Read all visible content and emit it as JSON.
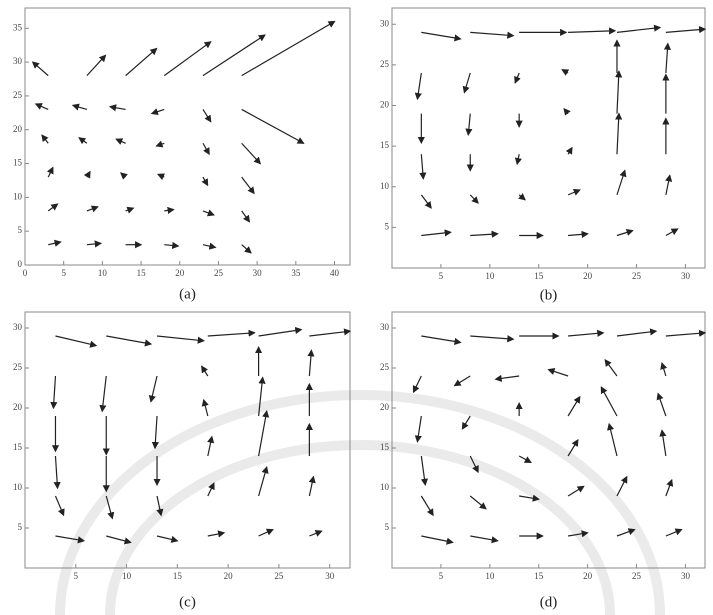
{
  "chart_data": [
    {
      "type": "quiver",
      "caption": "(a)",
      "color": "#222222",
      "xlim": [
        0,
        42
      ],
      "ylim": [
        0,
        38
      ],
      "xticks": [
        0,
        5,
        10,
        15,
        20,
        25,
        30,
        35,
        40
      ],
      "yticks": [
        0,
        5,
        10,
        15,
        20,
        25,
        30,
        35
      ],
      "x": [
        3,
        8,
        13,
        18,
        23,
        28
      ],
      "y": [
        3,
        8,
        13,
        18,
        23,
        28
      ],
      "u": [
        [
          0.8,
          0.9,
          1.0,
          0.9,
          0.8,
          0.6
        ],
        [
          0.6,
          0.7,
          0.5,
          0.6,
          0.7,
          0.5
        ],
        [
          0.3,
          0.2,
          -0.3,
          -0.4,
          0.3,
          0.8
        ],
        [
          -0.4,
          -0.5,
          -0.6,
          -0.5,
          0.4,
          1.2
        ],
        [
          -0.8,
          -0.9,
          -1.0,
          -0.8,
          0.5,
          4.0
        ],
        [
          -1.0,
          1.2,
          2.0,
          3.0,
          4.0,
          6.0
        ]
      ],
      "v": [
        [
          0.2,
          0.1,
          0.0,
          -0.1,
          -0.2,
          -0.6
        ],
        [
          0.5,
          0.3,
          0.2,
          0.1,
          -0.3,
          -0.8
        ],
        [
          0.7,
          0.4,
          0.3,
          0.2,
          -0.6,
          -1.2
        ],
        [
          0.6,
          0.4,
          0.3,
          -0.2,
          -0.8,
          -1.5
        ],
        [
          0.4,
          0.3,
          0.2,
          -0.3,
          -0.9,
          -2.5
        ],
        [
          1.0,
          1.5,
          2.0,
          2.5,
          3.0,
          4.0
        ]
      ]
    },
    {
      "type": "quiver",
      "caption": "(b)",
      "color": "#222222",
      "xlim": [
        0,
        32
      ],
      "ylim": [
        0,
        32
      ],
      "xticks": [
        5,
        10,
        15,
        20,
        25,
        30
      ],
      "yticks": [
        5,
        10,
        15,
        20,
        25,
        30
      ],
      "x": [
        3,
        8,
        13,
        18,
        23,
        28
      ],
      "y": [
        4,
        9,
        14,
        19,
        24,
        29
      ],
      "u": [
        [
          1.5,
          1.4,
          1.2,
          1.0,
          0.8,
          0.6
        ],
        [
          0.5,
          0.4,
          0.3,
          0.6,
          0.4,
          0.2
        ],
        [
          0.1,
          0.0,
          -0.1,
          0.2,
          0.1,
          0.0
        ],
        [
          0.0,
          -0.1,
          0.0,
          -0.2,
          0.1,
          0.0
        ],
        [
          -0.2,
          -0.3,
          -0.2,
          -0.3,
          0.0,
          0.1
        ],
        [
          2.0,
          2.2,
          2.4,
          2.4,
          2.2,
          2.0
        ]
      ],
      "v": [
        [
          0.2,
          0.1,
          0.0,
          0.1,
          0.3,
          0.4
        ],
        [
          -0.8,
          -0.5,
          -0.3,
          0.3,
          1.5,
          1.2
        ],
        [
          -1.5,
          -1.0,
          -0.6,
          0.4,
          2.5,
          2.2
        ],
        [
          -1.8,
          -1.3,
          -0.8,
          0.3,
          2.6,
          2.4
        ],
        [
          -1.6,
          -1.2,
          -0.6,
          0.2,
          2.0,
          1.8
        ],
        [
          -0.4,
          -0.2,
          0.0,
          0.1,
          0.3,
          0.2
        ]
      ]
    },
    {
      "type": "quiver",
      "caption": "(c)",
      "color": "#222222",
      "xlim": [
        0,
        32
      ],
      "ylim": [
        0,
        32
      ],
      "xticks": [
        5,
        10,
        15,
        20,
        25,
        30
      ],
      "yticks": [
        5,
        10,
        15,
        20,
        25,
        30
      ],
      "x": [
        3,
        8,
        13,
        18,
        23,
        28
      ],
      "y": [
        4,
        9,
        14,
        19,
        24,
        29
      ],
      "u": [
        [
          1.4,
          1.2,
          1.0,
          0.8,
          0.7,
          0.6
        ],
        [
          0.4,
          0.3,
          0.2,
          0.3,
          0.4,
          0.2
        ],
        [
          0.1,
          0.0,
          0.0,
          0.2,
          0.4,
          0.0
        ],
        [
          0.0,
          0.0,
          -0.1,
          -0.2,
          0.2,
          0.0
        ],
        [
          -0.1,
          -0.2,
          -0.3,
          -0.3,
          0.0,
          0.1
        ],
        [
          2.0,
          2.2,
          2.3,
          2.3,
          2.1,
          2.0
        ]
      ],
      "v": [
        [
          -0.3,
          -0.4,
          -0.3,
          0.2,
          0.4,
          0.3
        ],
        [
          -1.2,
          -1.4,
          -1.2,
          0.8,
          1.8,
          1.2
        ],
        [
          -2.0,
          -2.2,
          -1.8,
          1.2,
          2.8,
          2.0
        ],
        [
          -2.2,
          -2.4,
          -2.0,
          1.0,
          2.4,
          2.0
        ],
        [
          -2.0,
          -2.2,
          -1.6,
          0.6,
          1.8,
          1.6
        ],
        [
          -0.6,
          -0.5,
          -0.3,
          0.2,
          0.4,
          0.3
        ]
      ]
    },
    {
      "type": "quiver",
      "caption": "(d)",
      "color": "#222222",
      "xlim": [
        0,
        32
      ],
      "ylim": [
        0,
        32
      ],
      "xticks": [
        5,
        10,
        15,
        20,
        25,
        30
      ],
      "yticks": [
        5,
        10,
        15,
        20,
        25,
        30
      ],
      "x": [
        3,
        8,
        13,
        18,
        23,
        28
      ],
      "y": [
        4,
        9,
        14,
        19,
        24,
        29
      ],
      "u": [
        [
          1.6,
          1.4,
          1.2,
          1.0,
          0.9,
          0.8
        ],
        [
          0.6,
          0.8,
          1.0,
          0.8,
          0.5,
          0.3
        ],
        [
          0.2,
          0.4,
          0.6,
          0.5,
          -0.4,
          -0.2
        ],
        [
          -0.2,
          -0.4,
          0.0,
          0.6,
          -0.8,
          -0.4
        ],
        [
          -0.4,
          -0.8,
          -1.2,
          -1.0,
          -0.6,
          -0.2
        ],
        [
          2.0,
          2.2,
          2.0,
          1.8,
          2.0,
          2.0
        ]
      ],
      "v": [
        [
          -0.4,
          -0.3,
          0.0,
          0.2,
          0.4,
          0.4
        ],
        [
          -1.2,
          -0.8,
          -0.2,
          0.6,
          1.2,
          1.0
        ],
        [
          -1.8,
          -1.0,
          -0.4,
          1.0,
          2.0,
          1.6
        ],
        [
          -1.6,
          -0.8,
          0.8,
          1.2,
          1.8,
          1.4
        ],
        [
          -1.0,
          -0.6,
          -0.2,
          0.4,
          1.0,
          0.8
        ],
        [
          -0.4,
          -0.2,
          0.0,
          0.2,
          0.3,
          0.2
        ]
      ]
    }
  ]
}
